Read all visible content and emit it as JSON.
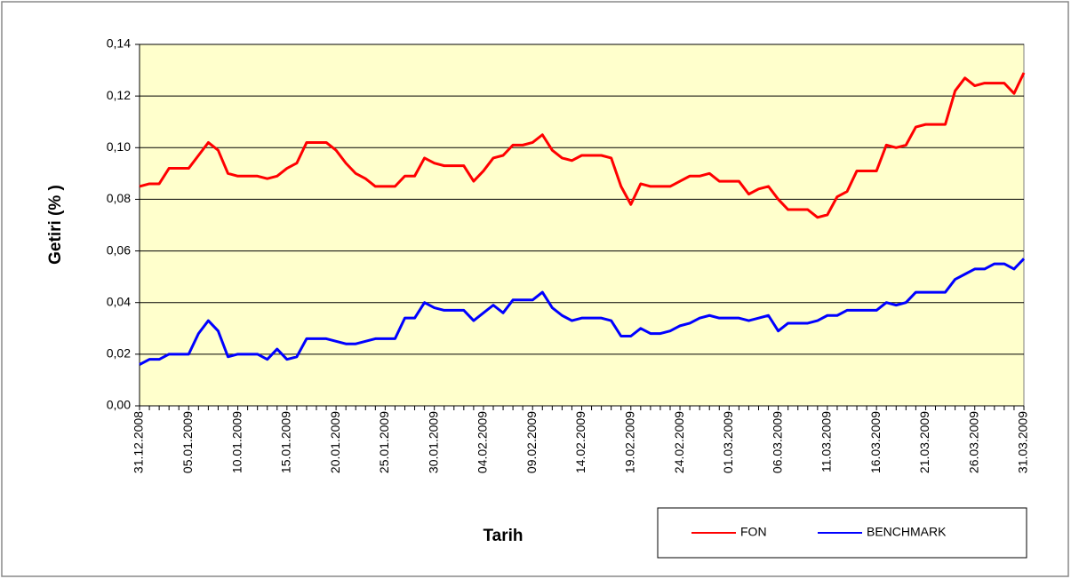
{
  "chart_data": {
    "type": "line",
    "y_label": "Getiri (% )",
    "x_label": "Tarih",
    "categories": [
      "31.12.2008",
      null,
      null,
      null,
      null,
      "05.01.2009",
      null,
      null,
      null,
      null,
      "10.01.2009",
      null,
      null,
      null,
      null,
      "15.01.2009",
      null,
      null,
      null,
      null,
      "20.01.2009",
      null,
      null,
      null,
      null,
      "25.01.2009",
      null,
      null,
      null,
      null,
      "30.01.2009",
      null,
      null,
      null,
      null,
      "04.02.2009",
      null,
      null,
      null,
      null,
      "09.02.2009",
      null,
      null,
      null,
      null,
      "14.02.2009",
      null,
      null,
      null,
      null,
      "19.02.2009",
      null,
      null,
      null,
      null,
      "24.02.2009",
      null,
      null,
      null,
      null,
      "01.03.2009",
      null,
      null,
      null,
      null,
      "06.03.2009",
      null,
      null,
      null,
      null,
      "11.03.2009",
      null,
      null,
      null,
      null,
      "16.03.2009",
      null,
      null,
      null,
      null,
      "21.03.2009",
      null,
      null,
      null,
      null,
      "26.03.2009",
      null,
      null,
      null,
      null,
      "31.03.2009"
    ],
    "series": [
      {
        "name": "FON",
        "color": "#ff0000",
        "values": [
          0.085,
          0.086,
          0.086,
          0.092,
          0.092,
          0.092,
          0.097,
          0.102,
          0.099,
          0.09,
          0.089,
          0.089,
          0.089,
          0.088,
          0.089,
          0.092,
          0.094,
          0.102,
          0.102,
          0.102,
          0.099,
          0.094,
          0.09,
          0.088,
          0.085,
          0.085,
          0.085,
          0.089,
          0.089,
          0.096,
          0.094,
          0.093,
          0.093,
          0.093,
          0.087,
          0.091,
          0.096,
          0.097,
          0.101,
          0.101,
          0.102,
          0.105,
          0.099,
          0.096,
          0.095,
          0.097,
          0.097,
          0.097,
          0.096,
          0.085,
          0.078,
          0.086,
          0.085,
          0.085,
          0.085,
          0.087,
          0.089,
          0.089,
          0.09,
          0.087,
          0.087,
          0.087,
          0.082,
          0.084,
          0.085,
          0.08,
          0.076,
          0.076,
          0.076,
          0.073,
          0.074,
          0.081,
          0.083,
          0.091,
          0.091,
          0.091,
          0.101,
          0.1,
          0.101,
          0.108,
          0.109,
          0.109,
          0.109,
          0.122,
          0.127,
          0.124,
          0.125,
          0.125,
          0.125,
          0.121,
          0.129
        ]
      },
      {
        "name": "BENCHMARK",
        "color": "#0000ff",
        "values": [
          0.016,
          0.018,
          0.018,
          0.02,
          0.02,
          0.02,
          0.028,
          0.033,
          0.029,
          0.019,
          0.02,
          0.02,
          0.02,
          0.018,
          0.022,
          0.018,
          0.019,
          0.026,
          0.026,
          0.026,
          0.025,
          0.024,
          0.024,
          0.025,
          0.026,
          0.026,
          0.026,
          0.034,
          0.034,
          0.04,
          0.038,
          0.037,
          0.037,
          0.037,
          0.033,
          0.036,
          0.039,
          0.036,
          0.041,
          0.041,
          0.041,
          0.044,
          0.038,
          0.035,
          0.033,
          0.034,
          0.034,
          0.034,
          0.033,
          0.027,
          0.027,
          0.03,
          0.028,
          0.028,
          0.029,
          0.031,
          0.032,
          0.034,
          0.035,
          0.034,
          0.034,
          0.034,
          0.033,
          0.034,
          0.035,
          0.029,
          0.032,
          0.032,
          0.032,
          0.033,
          0.035,
          0.035,
          0.037,
          0.037,
          0.037,
          0.037,
          0.04,
          0.039,
          0.04,
          0.044,
          0.044,
          0.044,
          0.044,
          0.049,
          0.051,
          0.053,
          0.053,
          0.055,
          0.055,
          0.053,
          0.057
        ]
      }
    ],
    "ylim": [
      0,
      0.14
    ],
    "yticks": [
      {
        "value": 0,
        "label": "0,00"
      },
      {
        "value": 0.02,
        "label": "0,02"
      },
      {
        "value": 0.04,
        "label": "0,04"
      },
      {
        "value": 0.06,
        "label": "0,06"
      },
      {
        "value": 0.08,
        "label": "0,08"
      },
      {
        "value": 0.1,
        "label": "0,10"
      },
      {
        "value": 0.12,
        "label": "0,12"
      },
      {
        "value": 0.14,
        "label": "0,14"
      }
    ],
    "grid": true,
    "background": "#ffffcc",
    "legend": "bottom-right"
  }
}
